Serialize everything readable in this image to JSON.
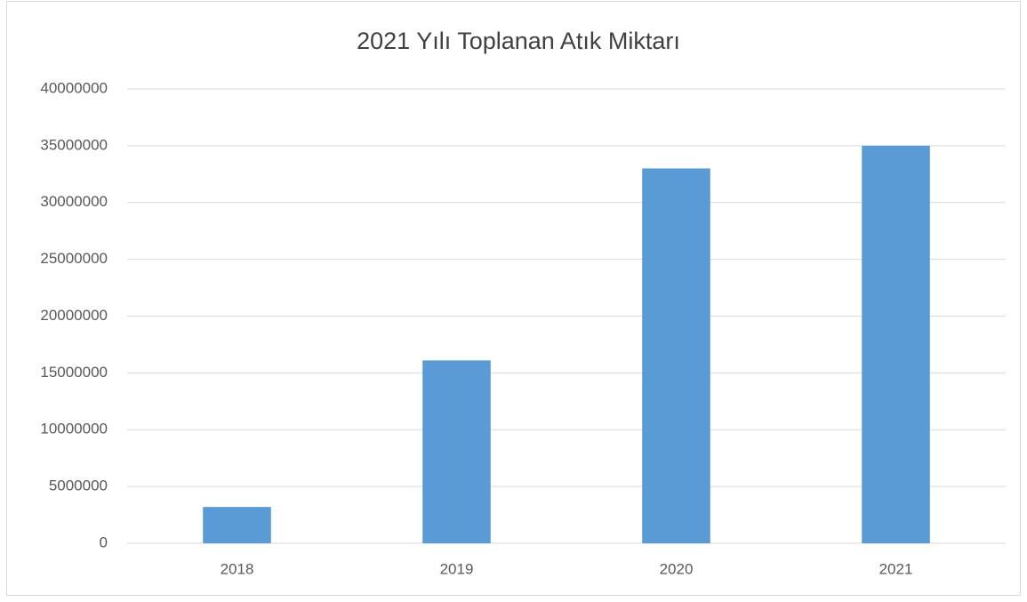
{
  "chart_data": {
    "type": "bar",
    "title": "2021 Yılı Toplanan Atık Miktarı",
    "categories": [
      "2018",
      "2019",
      "2020",
      "2021"
    ],
    "values": [
      3200000,
      16100000,
      33000000,
      35000000
    ],
    "color": "#5b9bd5",
    "ylim": [
      0,
      40000000
    ],
    "yticks": [
      0,
      5000000,
      10000000,
      15000000,
      20000000,
      25000000,
      30000000,
      35000000,
      40000000
    ],
    "grid": true
  }
}
